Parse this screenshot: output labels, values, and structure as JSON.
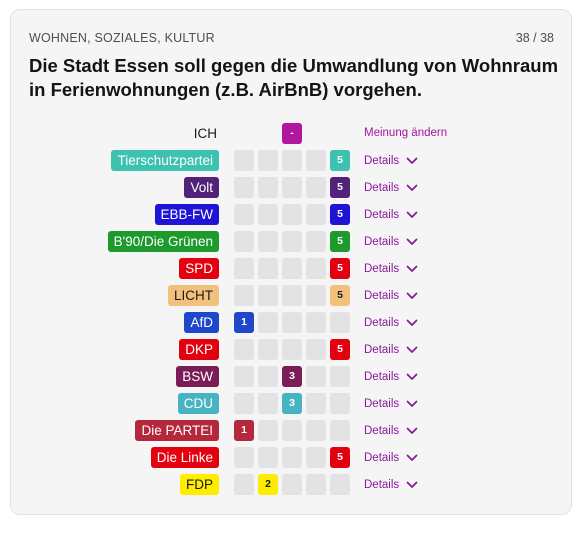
{
  "header": {
    "category": "WOHNEN, SOZIALES, KULTUR",
    "counter": "38 / 38",
    "question": "Die Stadt Essen soll gegen die Umwandlung von Wohnraum in Ferienwohnungen (z.B. AirBnB) vorgehen."
  },
  "me": {
    "label": "ICH",
    "position": 3,
    "value": "-",
    "color": "#b0169e",
    "action": "Meinung ändern"
  },
  "details_label": "Details",
  "parties": [
    {
      "name": "Tierschutzpartei",
      "bg": "#3ec2b0",
      "fg": "#ffffff",
      "position": 5,
      "score": "5"
    },
    {
      "name": "Volt",
      "bg": "#502379",
      "fg": "#ffffff",
      "position": 5,
      "score": "5"
    },
    {
      "name": "EBB-FW",
      "bg": "#1f13d6",
      "fg": "#ffffff",
      "position": 5,
      "score": "5"
    },
    {
      "name": "B'90/Die Grünen",
      "bg": "#1c9a2c",
      "fg": "#ffffff",
      "position": 5,
      "score": "5"
    },
    {
      "name": "SPD",
      "bg": "#e3000f",
      "fg": "#ffffff",
      "position": 5,
      "score": "5"
    },
    {
      "name": "LICHT",
      "bg": "#f2c27d",
      "fg": "#1a1a1a",
      "position": 5,
      "score": "5"
    },
    {
      "name": "AfD",
      "bg": "#1f47c9",
      "fg": "#ffffff",
      "position": 1,
      "score": "1"
    },
    {
      "name": "DKP",
      "bg": "#e3000f",
      "fg": "#ffffff",
      "position": 5,
      "score": "5"
    },
    {
      "name": "BSW",
      "bg": "#7a1c55",
      "fg": "#ffffff",
      "position": 3,
      "score": "3"
    },
    {
      "name": "CDU",
      "bg": "#47b4c4",
      "fg": "#ffffff",
      "position": 3,
      "score": "3"
    },
    {
      "name": "Die PARTEI",
      "bg": "#b5273a",
      "fg": "#ffffff",
      "position": 1,
      "score": "1"
    },
    {
      "name": "Die Linke",
      "bg": "#e3000f",
      "fg": "#ffffff",
      "position": 5,
      "score": "5"
    },
    {
      "name": "FDP",
      "bg": "#ffed00",
      "fg": "#1a1a1a",
      "position": 2,
      "score": "2"
    }
  ]
}
